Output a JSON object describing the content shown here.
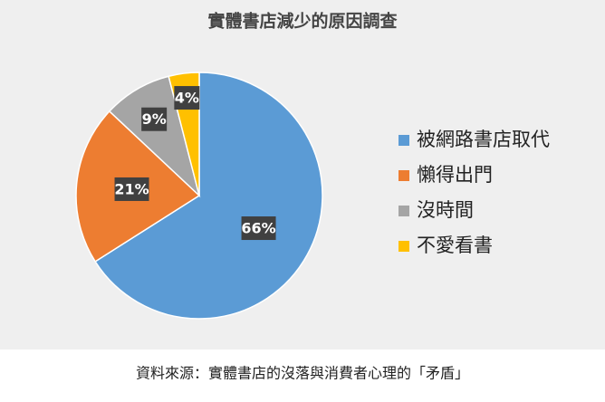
{
  "chart_data": {
    "type": "pie",
    "title": "實體書店減少的原因調查",
    "categories": [
      "被網路書店取代",
      "懶得出門",
      "沒時間",
      "不愛看書"
    ],
    "values": [
      66,
      21,
      9,
      4
    ],
    "value_labels": [
      "66%",
      "21%",
      "9%",
      "4%"
    ],
    "colors": [
      "#5b9bd5",
      "#ed7d31",
      "#a5a5a5",
      "#ffc000"
    ],
    "legend": "right",
    "source": "資料來源：實體書店的沒落與消費者心理的「矛盾」"
  }
}
